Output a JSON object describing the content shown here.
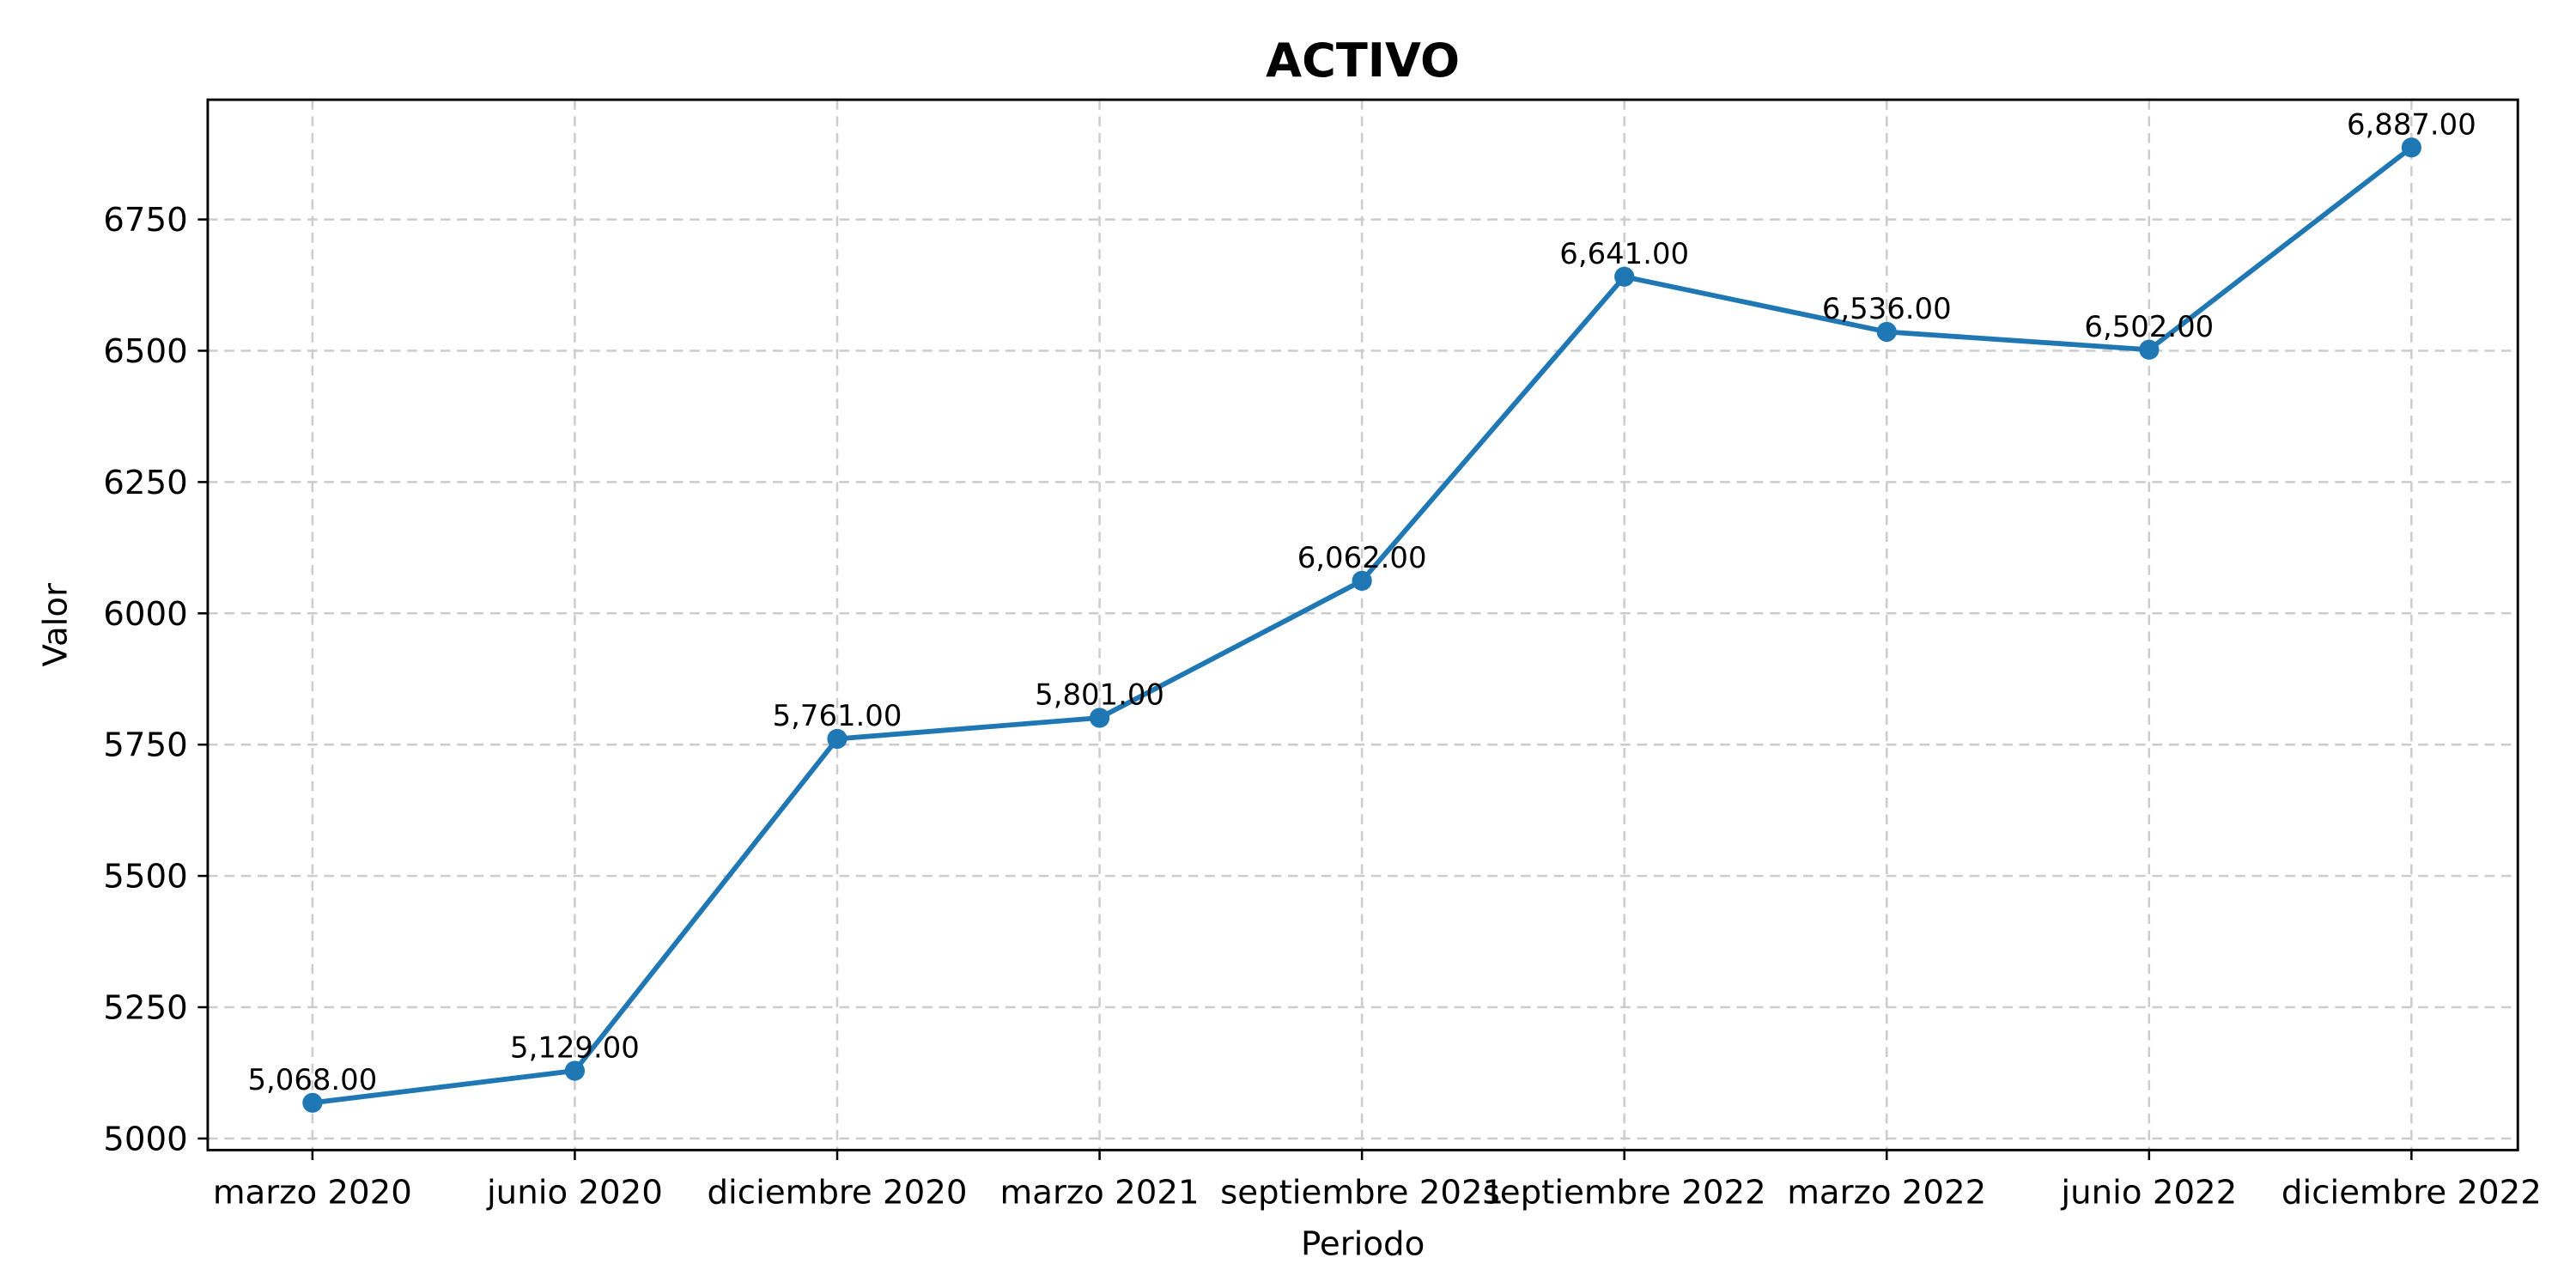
{
  "chart_data": {
    "type": "line",
    "title": "ACTIVO",
    "xlabel": "Periodo",
    "ylabel": "Valor",
    "categories": [
      "marzo 2020",
      "junio 2020",
      "diciembre 2020",
      "marzo 2021",
      "septiembre 2021",
      "septiembre 2022",
      "marzo 2022",
      "junio 2022",
      "diciembre 2022"
    ],
    "series": [
      {
        "values": [
          5068,
          5129,
          5761,
          5801,
          6062,
          6641,
          6536,
          6502,
          6887
        ],
        "labels": [
          "5,068.00",
          "5,129.00",
          "5,761.00",
          "5,801.00",
          "6,062.00",
          "6,641.00",
          "6,536.00",
          "6,502.00",
          "6,887.00"
        ]
      }
    ],
    "yticks": [
      5000,
      5250,
      5500,
      5750,
      6000,
      6250,
      6500,
      6750
    ],
    "ytick_labels": [
      "5000",
      "5250",
      "5500",
      "5750",
      "6000",
      "6250",
      "6500",
      "6750"
    ],
    "ylim": [
      4978,
      6978
    ],
    "grid": true,
    "line_color": "#1f77b4"
  }
}
